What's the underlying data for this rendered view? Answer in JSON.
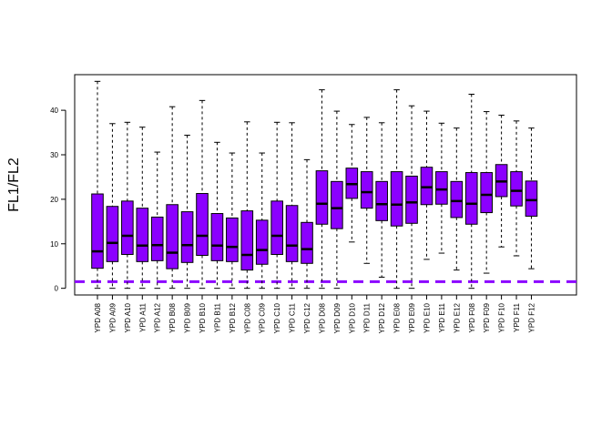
{
  "chart_data": {
    "type": "boxplot",
    "ylabel": "FL1/FL2",
    "xlabel": "",
    "title": "",
    "ylim": [
      -1.5,
      48
    ],
    "yticks": [
      0,
      10,
      20,
      30,
      40
    ],
    "box_color": "#8B00FF",
    "reference_line": {
      "y": 1.5,
      "color": "#8B00FF",
      "style": "dashed"
    },
    "categories": [
      "YPD A08",
      "YPD A09",
      "YPD A10",
      "YPD A11",
      "YPD A12",
      "YPD B08",
      "YPD B09",
      "YPD B10",
      "YPD B11",
      "YPD B12",
      "YPD C08",
      "YPD C09",
      "YPD C10",
      "YPD C11",
      "YPD C12",
      "YPD D08",
      "YPD D09",
      "YPD D10",
      "YPD D11",
      "YPD D12",
      "YPD E08",
      "YPD E09",
      "YPD E10",
      "YPD E11",
      "YPD E12",
      "YPD F08",
      "YPD F09",
      "YPD F10",
      "YPD F11",
      "YPD F12"
    ],
    "boxes": [
      {
        "min": 0,
        "q1": 4.5,
        "median": 8.3,
        "q3": 21.2,
        "max": 46.5
      },
      {
        "min": 0,
        "q1": 6.0,
        "median": 10.2,
        "q3": 18.4,
        "max": 37.0
      },
      {
        "min": 0,
        "q1": 7.6,
        "median": 11.8,
        "q3": 19.6,
        "max": 37.3
      },
      {
        "min": 0,
        "q1": 6.0,
        "median": 9.6,
        "q3": 18.0,
        "max": 36.2
      },
      {
        "min": 0,
        "q1": 6.2,
        "median": 9.7,
        "q3": 16.0,
        "max": 30.6
      },
      {
        "min": 0,
        "q1": 4.4,
        "median": 8.0,
        "q3": 18.8,
        "max": 40.8
      },
      {
        "min": 0,
        "q1": 5.8,
        "median": 9.7,
        "q3": 17.2,
        "max": 34.4
      },
      {
        "min": 0,
        "q1": 7.4,
        "median": 11.8,
        "q3": 21.3,
        "max": 42.2
      },
      {
        "min": 0,
        "q1": 6.2,
        "median": 9.6,
        "q3": 16.8,
        "max": 32.8
      },
      {
        "min": 0,
        "q1": 6.0,
        "median": 9.3,
        "q3": 15.8,
        "max": 30.4
      },
      {
        "min": 0,
        "q1": 4.1,
        "median": 7.5,
        "q3": 17.4,
        "max": 37.4
      },
      {
        "min": 0,
        "q1": 5.4,
        "median": 8.6,
        "q3": 15.3,
        "max": 30.4
      },
      {
        "min": 0,
        "q1": 7.6,
        "median": 11.8,
        "q3": 19.6,
        "max": 37.3
      },
      {
        "min": 0,
        "q1": 6.0,
        "median": 9.6,
        "q3": 18.6,
        "max": 37.2
      },
      {
        "min": 0,
        "q1": 5.6,
        "median": 8.8,
        "q3": 14.8,
        "max": 28.9
      },
      {
        "min": 0,
        "q1": 14.4,
        "median": 19.0,
        "q3": 26.4,
        "max": 44.6
      },
      {
        "min": 0,
        "q1": 13.4,
        "median": 18.0,
        "q3": 24.0,
        "max": 39.8
      },
      {
        "min": 10.4,
        "q1": 20.2,
        "median": 23.4,
        "q3": 27.0,
        "max": 36.8
      },
      {
        "min": 5.6,
        "q1": 18.0,
        "median": 21.6,
        "q3": 26.2,
        "max": 38.4
      },
      {
        "min": 2.5,
        "q1": 15.2,
        "median": 18.9,
        "q3": 24.0,
        "max": 37.2
      },
      {
        "min": 0,
        "q1": 14.0,
        "median": 18.8,
        "q3": 26.2,
        "max": 44.6
      },
      {
        "min": 0,
        "q1": 14.6,
        "median": 19.3,
        "q3": 25.2,
        "max": 41.0
      },
      {
        "min": 6.5,
        "q1": 18.8,
        "median": 22.7,
        "q3": 27.2,
        "max": 39.8
      },
      {
        "min": 7.9,
        "q1": 18.9,
        "median": 22.2,
        "q3": 26.2,
        "max": 37.1
      },
      {
        "min": 4.1,
        "q1": 15.9,
        "median": 19.6,
        "q3": 24.0,
        "max": 36.0
      },
      {
        "min": 0,
        "q1": 14.4,
        "median": 19.0,
        "q3": 26.0,
        "max": 43.6
      },
      {
        "min": 3.4,
        "q1": 17.0,
        "median": 21.0,
        "q3": 26.0,
        "max": 39.7
      },
      {
        "min": 9.3,
        "q1": 20.6,
        "median": 24.0,
        "q3": 27.8,
        "max": 38.9
      },
      {
        "min": 7.3,
        "q1": 18.5,
        "median": 21.9,
        "q3": 26.2,
        "max": 37.6
      },
      {
        "min": 4.4,
        "q1": 16.2,
        "median": 19.8,
        "q3": 24.1,
        "max": 36.0
      }
    ]
  }
}
